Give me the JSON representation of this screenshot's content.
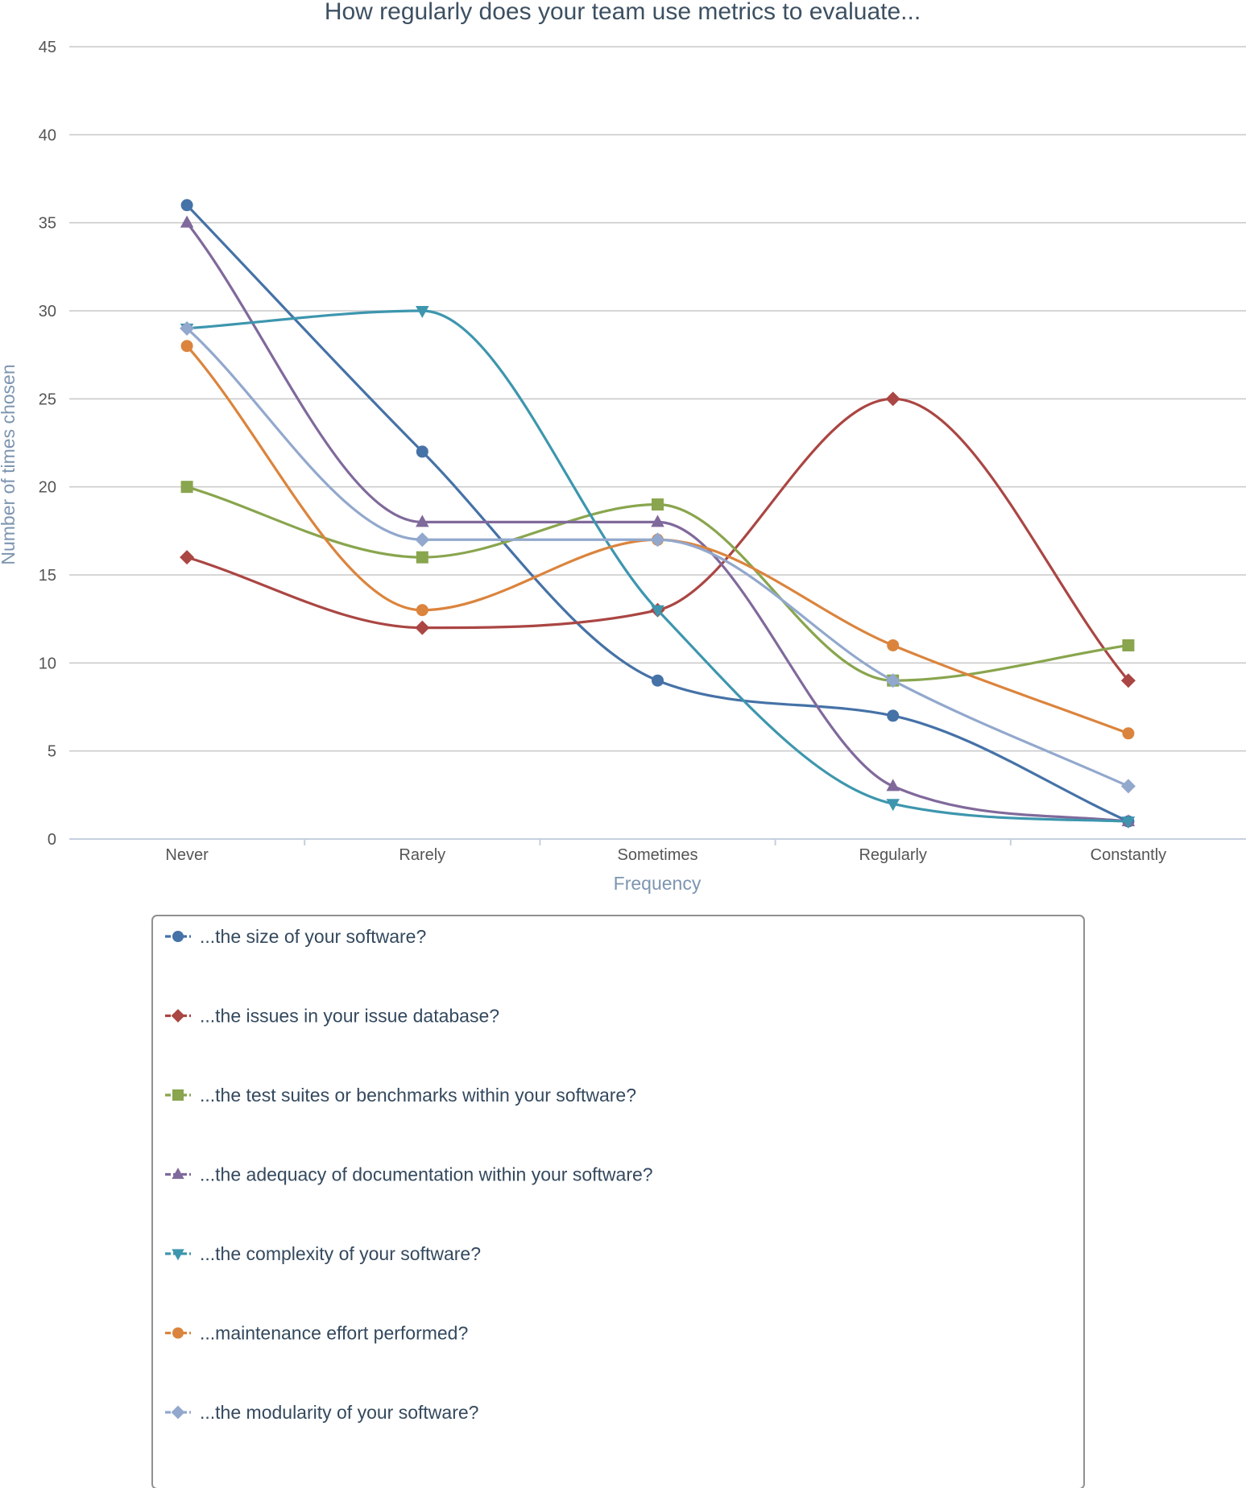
{
  "chart_data": {
    "type": "line",
    "title": "How regularly does your team use metrics to evaluate...",
    "xlabel": "Frequency",
    "ylabel": "Number of times chosen",
    "categories": [
      "Never",
      "Rarely",
      "Sometimes",
      "Regularly",
      "Constantly"
    ],
    "ylim": [
      0,
      45
    ],
    "yticks": [
      0,
      5,
      10,
      15,
      20,
      25,
      30,
      35,
      40,
      45
    ],
    "grid": true,
    "smooth": true,
    "legend_position": "bottom",
    "series": [
      {
        "name": "...the size of your software?",
        "color": "#4572a7",
        "marker": "circle",
        "values": [
          36,
          22,
          9,
          7,
          1
        ]
      },
      {
        "name": "...the issues in your issue database?",
        "color": "#aa4643",
        "marker": "diamond",
        "values": [
          16,
          12,
          13,
          25,
          9
        ]
      },
      {
        "name": "...the test suites or benchmarks within your software?",
        "color": "#89a54e",
        "marker": "square",
        "values": [
          20,
          16,
          19,
          9,
          11
        ]
      },
      {
        "name": "...the adequacy of documentation within your software?",
        "color": "#80699b",
        "marker": "triangle",
        "values": [
          35,
          18,
          18,
          3,
          1
        ]
      },
      {
        "name": "...the complexity of your software?",
        "color": "#3d96ae",
        "marker": "triangle-down",
        "values": [
          29,
          30,
          13,
          2,
          1
        ]
      },
      {
        "name": "...maintenance effort performed?",
        "color": "#db843d",
        "marker": "circle",
        "values": [
          28,
          13,
          17,
          11,
          6
        ]
      },
      {
        "name": "...the modularity of your software?",
        "color": "#92a8cd",
        "marker": "diamond",
        "values": [
          29,
          17,
          17,
          9,
          3
        ]
      }
    ]
  }
}
